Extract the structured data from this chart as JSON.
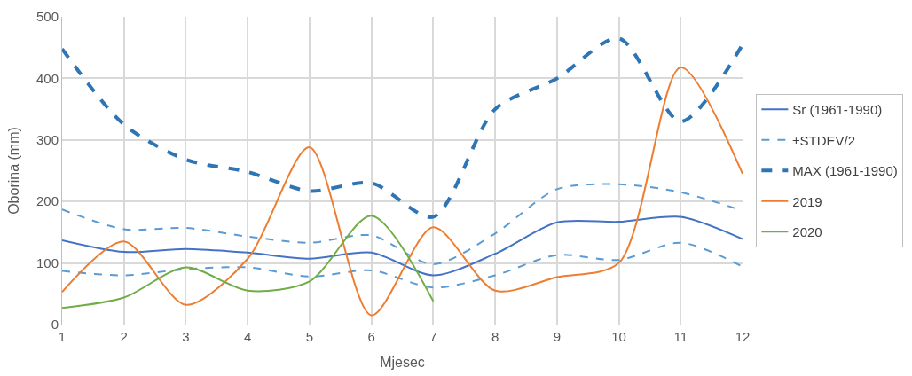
{
  "chart_data": {
    "type": "line",
    "xlabel": "Mjesec",
    "ylabel": "Oborina (mm)",
    "x": [
      1,
      2,
      3,
      4,
      5,
      6,
      7,
      8,
      9,
      10,
      11,
      12
    ],
    "xlim": [
      1,
      12
    ],
    "xticks": [
      1,
      2,
      3,
      4,
      5,
      6,
      7,
      8,
      9,
      10,
      11,
      12
    ],
    "ylim": [
      0,
      500
    ],
    "yticks": [
      0,
      100,
      200,
      300,
      400,
      500
    ],
    "grid": true,
    "legend": "right",
    "marker": "none",
    "series": [
      {
        "name": "Sr (1961-1990)",
        "color": "#4472c4",
        "line_style": "solid",
        "values": [
          137,
          118,
          123,
          117,
          107,
          117,
          80,
          115,
          166,
          167,
          175,
          139
        ]
      },
      {
        "name": "±STDEV/2",
        "color": "#5b9bd5",
        "line_style": "dashed",
        "values": [
          187,
          155,
          157,
          143,
          133,
          145,
          98,
          148,
          220,
          228,
          215,
          185
        ]
      },
      {
        "color": "#5b9bd5",
        "line_style": "dashed",
        "values": [
          87,
          80,
          90,
          93,
          78,
          88,
          60,
          80,
          113,
          105,
          133,
          94
        ]
      },
      {
        "name": "MAX (1961-1990)",
        "color": "#2e75b6",
        "line_style": "dashed",
        "values": [
          448,
          325,
          268,
          248,
          217,
          230,
          175,
          350,
          400,
          465,
          330,
          455
        ]
      },
      {
        "name": "2019",
        "color": "#ed7d31",
        "line_style": "solid",
        "values": [
          53,
          135,
          32,
          107,
          288,
          15,
          158,
          55,
          77,
          100,
          418,
          245
        ]
      },
      {
        "name": "2020",
        "color": "#70ad47",
        "line_style": "solid",
        "values": [
          27,
          44,
          93,
          55,
          70,
          177,
          38,
          null,
          null,
          null,
          null,
          null
        ]
      }
    ]
  }
}
